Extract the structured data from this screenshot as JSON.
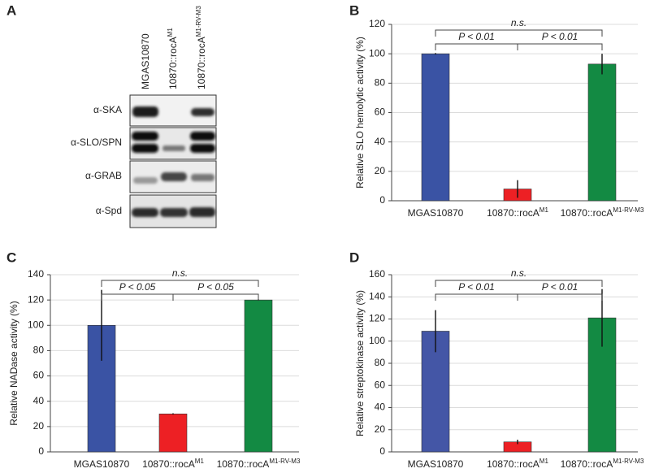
{
  "chart_data": [
    {
      "type": "blot",
      "panel_label": "A",
      "lanes": [
        "MGAS10870",
        "10870::rocA",
        "10870::rocA"
      ],
      "lane_superscripts": [
        null,
        "M1",
        "M1-RV-M3"
      ],
      "rows": [
        "α-SKA",
        "α-SLO/SPN",
        "α-GRAB",
        "α-Spd"
      ]
    },
    {
      "type": "bar",
      "panel_label": "B",
      "ylabel": "Relative SLO hemolytic activity (%)",
      "categories": [
        "MGAS10870",
        "10870::rocA",
        "10870::rocA"
      ],
      "category_superscripts": [
        null,
        "M1",
        "M1-RV-M3"
      ],
      "values": [
        100,
        8,
        93
      ],
      "errors": [
        0.5,
        6,
        7
      ],
      "colors": [
        "#3a53a4",
        "#ed2024",
        "#138a43"
      ],
      "ylim": [
        0,
        120
      ],
      "yticks": [
        0,
        20,
        40,
        60,
        80,
        100,
        120
      ],
      "grid": true,
      "brackets": [
        {
          "between": [
            0,
            2
          ],
          "label": "n.s."
        },
        {
          "between": [
            0,
            1
          ],
          "label": "P < 0.01"
        },
        {
          "between": [
            1,
            2
          ],
          "label": "P < 0.01"
        }
      ]
    },
    {
      "type": "bar",
      "panel_label": "C",
      "ylabel": "Relative NADase activity (%)",
      "categories": [
        "MGAS10870",
        "10870::rocA",
        "10870::rocA"
      ],
      "category_superscripts": [
        null,
        "M1",
        "M1-RV-M3"
      ],
      "values": [
        100,
        30,
        120
      ],
      "errors": [
        28,
        0.5,
        0.5
      ],
      "colors": [
        "#3a53a4",
        "#ed2024",
        "#138a43"
      ],
      "ylim": [
        0,
        140
      ],
      "yticks": [
        0,
        20,
        40,
        60,
        80,
        100,
        120,
        140
      ],
      "grid": true,
      "brackets": [
        {
          "between": [
            0,
            2
          ],
          "label": "n.s."
        },
        {
          "between": [
            0,
            1
          ],
          "label": "P < 0.05"
        },
        {
          "between": [
            1,
            2
          ],
          "label": "P < 0.05"
        }
      ]
    },
    {
      "type": "bar",
      "panel_label": "D",
      "ylabel": "Relative streptokinase activity (%)",
      "categories": [
        "MGAS10870",
        "10870::rocA",
        "10870::rocA"
      ],
      "category_superscripts": [
        null,
        "M1",
        "M1-RV-M3"
      ],
      "values": [
        109,
        9,
        121
      ],
      "errors": [
        19,
        2,
        26
      ],
      "colors": [
        "#4456a6",
        "#ed2024",
        "#138a43"
      ],
      "ylim": [
        0,
        160
      ],
      "yticks": [
        0,
        20,
        40,
        60,
        80,
        100,
        120,
        140,
        160
      ],
      "grid": true,
      "brackets": [
        {
          "between": [
            0,
            2
          ],
          "label": "n.s."
        },
        {
          "between": [
            0,
            1
          ],
          "label": "P < 0.01"
        },
        {
          "between": [
            1,
            2
          ],
          "label": "P < 0.01"
        }
      ]
    }
  ]
}
